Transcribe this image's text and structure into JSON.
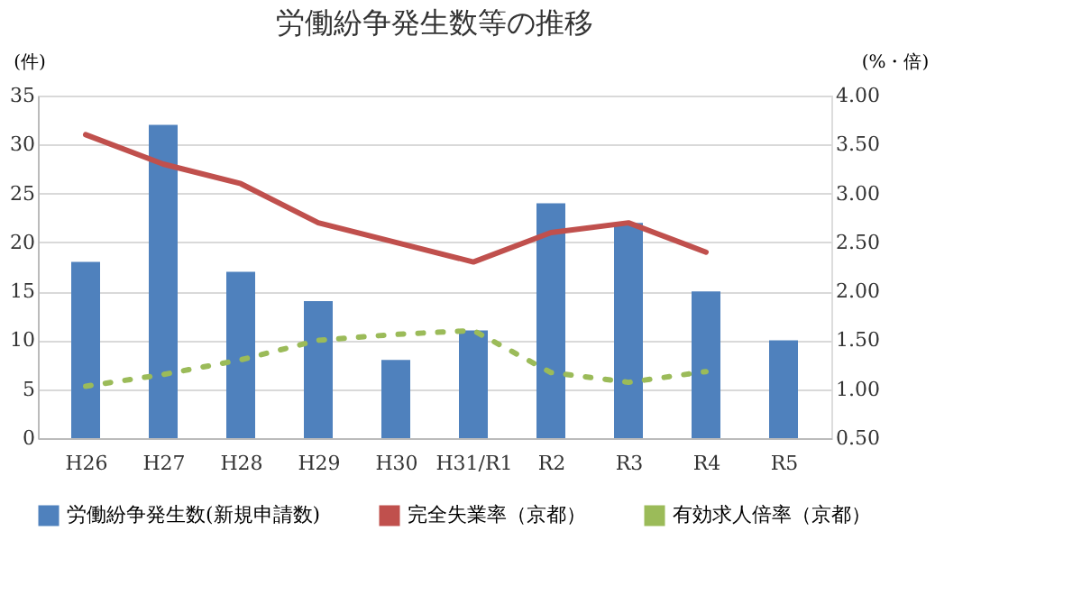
{
  "chart_data": {
    "type": "bar",
    "title": "労働紛争発生数等の推移",
    "ylabel": "(件)",
    "y2label": "(%・倍)",
    "categories": [
      "H26",
      "H27",
      "H28",
      "H29",
      "H30",
      "H31/R1",
      "R2",
      "R3",
      "R4",
      "R5"
    ],
    "series": [
      {
        "name": "労働紛争発生数(新規申請数)",
        "color": "#4f81bd",
        "values": [
          18,
          32,
          17,
          14,
          8,
          11,
          24,
          22,
          15,
          10
        ]
      },
      {
        "name": "完全失業率（京都）",
        "type": "line",
        "axis": "y2",
        "line_style": "solid",
        "color": "#c0504d",
        "values": [
          3.6,
          3.3,
          3.1,
          2.7,
          2.5,
          2.3,
          2.6,
          2.7,
          2.4,
          null
        ]
      },
      {
        "name": "有効求人倍率（京都）",
        "type": "line",
        "axis": "y2",
        "line_style": "dotted",
        "color": "#9bbb59",
        "values": [
          1.03,
          1.15,
          1.3,
          1.5,
          1.56,
          1.6,
          1.17,
          1.07,
          1.18,
          null
        ]
      }
    ],
    "ylim": [
      0,
      35
    ],
    "yticks": [
      0,
      5,
      10,
      15,
      20,
      25,
      30,
      35
    ],
    "y2lim": [
      0.5,
      4
    ],
    "y2ticks": [
      {
        "value": 0.5,
        "label": "0.50"
      },
      {
        "value": 1,
        "label": "1.00"
      },
      {
        "value": 1.5,
        "label": "1.50"
      },
      {
        "value": 2,
        "label": "2.00"
      },
      {
        "value": 2.5,
        "label": "2.50"
      },
      {
        "value": 3,
        "label": "3.00"
      },
      {
        "value": 3.5,
        "label": "3.50"
      },
      {
        "value": 4,
        "label": "4.00"
      }
    ],
    "grid": "y",
    "legend": "bottom"
  }
}
